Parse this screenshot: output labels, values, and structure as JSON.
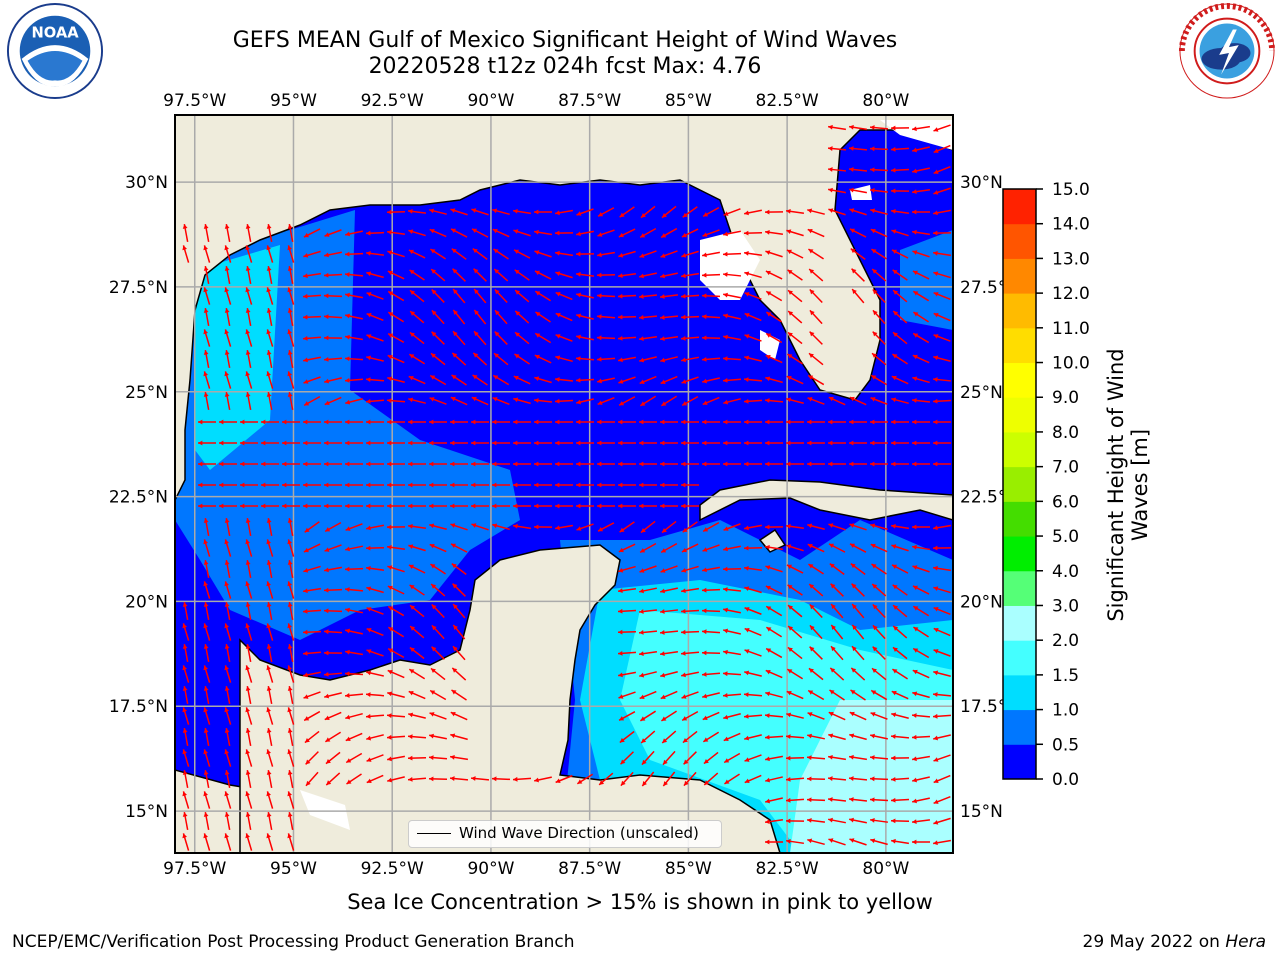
{
  "title": {
    "line1": "GEFS MEAN Gulf of Mexico Significant Height of Wind Waves",
    "line2": "20220528 t12z 024h fcst   Max: 4.76"
  },
  "logos": {
    "left": {
      "icon": "noaa-logo",
      "text": "NOAA",
      "ring_text": "NATIONAL OCEANIC AND ATMOSPHERIC ADMINISTRATION · U.S. DEPARTMENT OF COMMERCE"
    },
    "right": {
      "icon": "nws-logo",
      "ring_text": "NATIONAL WEATHER SERVICE"
    }
  },
  "map": {
    "lon_ticks": [
      "97.5°W",
      "95°W",
      "92.5°W",
      "90°W",
      "87.5°W",
      "85°W",
      "82.5°W",
      "80°W"
    ],
    "lat_ticks": [
      "30°N",
      "27.5°N",
      "25°N",
      "22.5°N",
      "20°N",
      "17.5°N",
      "15°N"
    ],
    "lon_range": [
      -98,
      -78.3
    ],
    "lat_range": [
      14.0,
      31.6
    ],
    "gridlines": true,
    "land_color": "#efecdc",
    "arrow_color": "#ff0000",
    "legend_entry": "Wind Wave Direction (unscaled)",
    "legend_position": "bottom-center"
  },
  "colorbar": {
    "label": "Significant Height of Wind Waves [m]",
    "ticks": [
      "15.0",
      "14.0",
      "13.0",
      "12.0",
      "11.0",
      "10.0",
      "9.0",
      "8.0",
      "7.0",
      "6.0",
      "5.0",
      "4.0",
      "3.0",
      "2.0",
      "1.5",
      "1.0",
      "0.5",
      "0.0"
    ],
    "levels": [
      0,
      0.5,
      1.0,
      1.5,
      2.0,
      3.0,
      4.0,
      5.0,
      6.0,
      7.0,
      8.0,
      9.0,
      10.0,
      11.0,
      12.0,
      13.0,
      14.0,
      15.0
    ],
    "colors": [
      "#0000ff",
      "#0077ff",
      "#00ddff",
      "#44ffff",
      "#aaffff",
      "#55ff77",
      "#00ee00",
      "#44dd00",
      "#99ee00",
      "#ccff00",
      "#eeff00",
      "#ffff00",
      "#ffdd00",
      "#ffbb00",
      "#ff8800",
      "#ff5500",
      "#ff2200"
    ]
  },
  "ice_note": "Sea Ice Concentration > 15% is shown in pink to yellow",
  "footer": {
    "left": "NCEP/EMC/Verification Post Processing Product Generation Branch",
    "date": "29 May 2022 on",
    "machine": "Hera"
  }
}
